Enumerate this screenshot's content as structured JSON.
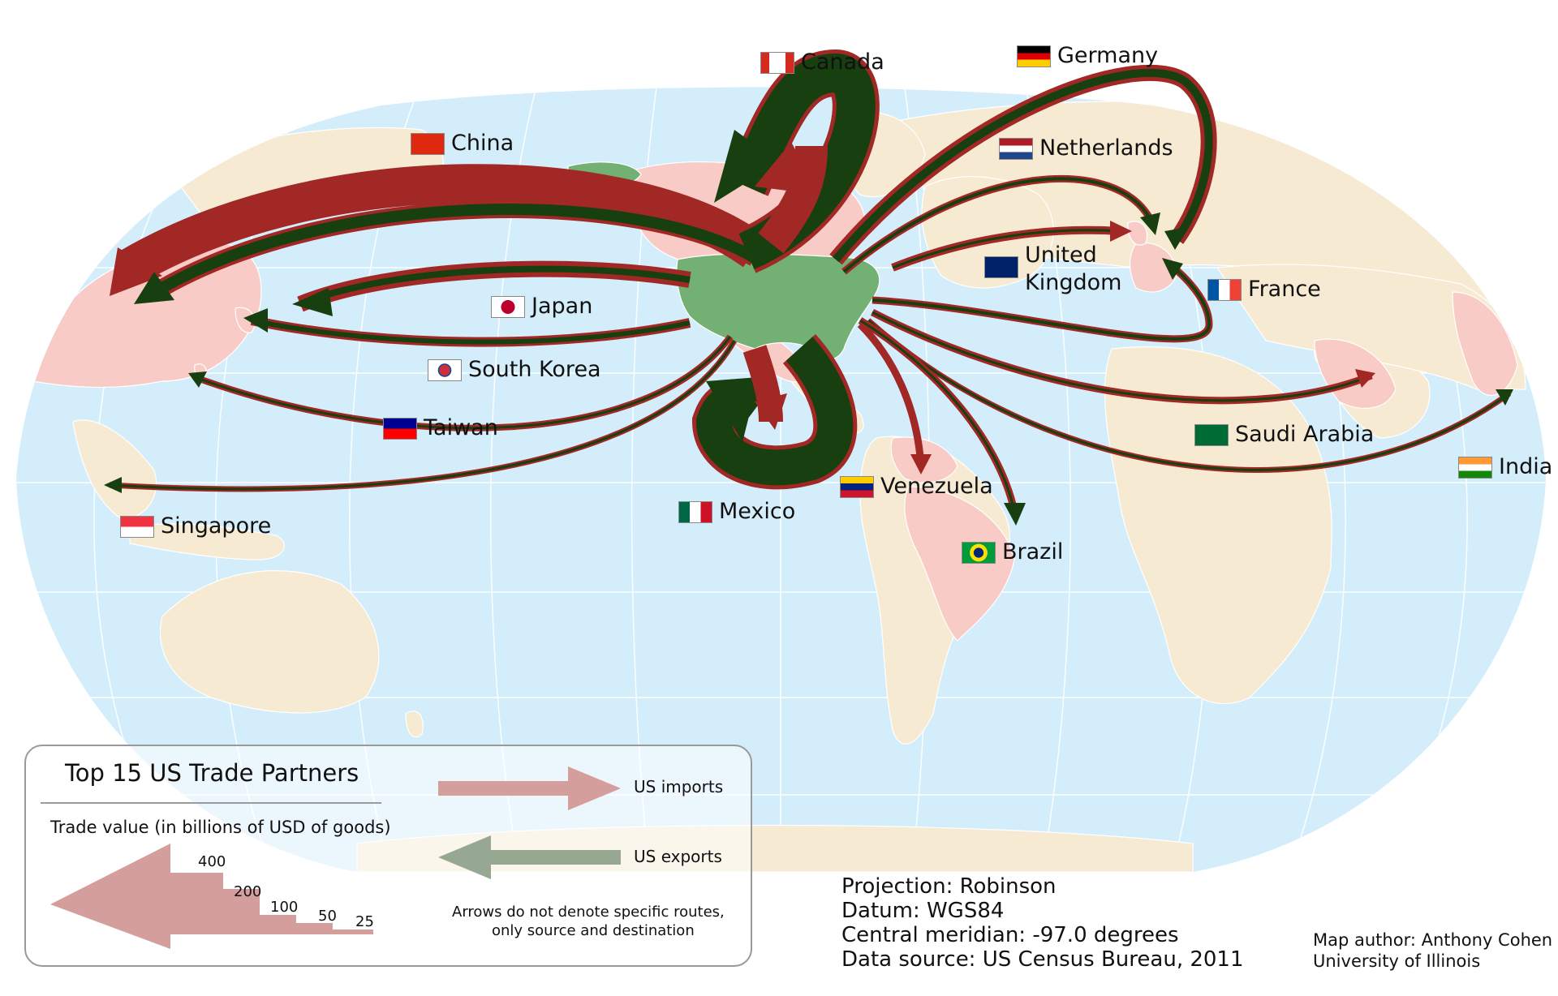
{
  "labels": {
    "canada": "Canada",
    "germany": "Germany",
    "china": "China",
    "netherlands": "Netherlands",
    "japan": "Japan",
    "uk_line1": "United",
    "uk_line2": "Kingdom",
    "france": "France",
    "south_korea": "South Korea",
    "taiwan": "Taiwan",
    "saudi_arabia": "Saudi Arabia",
    "india": "India",
    "venezuela": "Venezuela",
    "mexico": "Mexico",
    "singapore": "Singapore",
    "brazil": "Brazil"
  },
  "legend": {
    "title": "Top 15 US Trade Partners",
    "subtitle": "Trade value (in billions of USD of goods)",
    "imports_label": "US imports",
    "exports_label": "US exports",
    "note_line1": "Arrows do not denote specific routes,",
    "note_line2": "only source and destination",
    "scale_values": [
      "400",
      "200",
      "100",
      "50",
      "25"
    ]
  },
  "meta": {
    "projection": "Projection: Robinson",
    "datum": "Datum: WGS84",
    "meridian": "Central meridian: -97.0 degrees",
    "source": "Data source: US Census Bureau, 2011",
    "author": "Map author: Anthony Cohen",
    "institution": "University of Illinois"
  },
  "colors": {
    "ocean": "#d4edfb",
    "land": "#f7ead2",
    "partner": "#f9cbc6",
    "usa": "#72b074",
    "imports": "#a12825",
    "exports": "#173f0f",
    "graticule": "#ffffff"
  }
}
